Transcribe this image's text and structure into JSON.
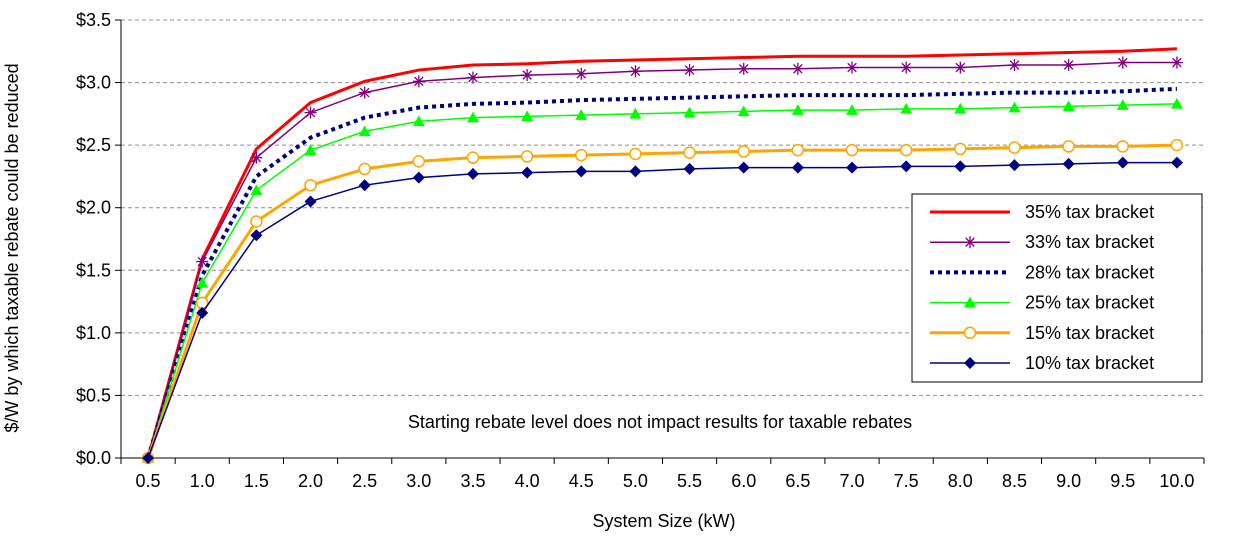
{
  "chart_data": {
    "type": "line",
    "xlabel": "System Size (kW)",
    "ylabel": "$/W by which taxable rebate could be reduced",
    "x": [
      "0.5",
      "1.0",
      "1.5",
      "2.0",
      "2.5",
      "3.0",
      "3.5",
      "4.0",
      "4.5",
      "5.0",
      "5.5",
      "6.0",
      "6.5",
      "7.0",
      "7.5",
      "8.0",
      "8.5",
      "9.0",
      "9.5",
      "10.0"
    ],
    "ylim": [
      0,
      3.5
    ],
    "y_ticks": [
      0,
      0.5,
      1.0,
      1.5,
      2.0,
      2.5,
      3.0,
      3.5
    ],
    "y_tick_labels": [
      "$0.0",
      "$0.5",
      "$1.0",
      "$1.5",
      "$2.0",
      "$2.5",
      "$3.0",
      "$3.5"
    ],
    "grid": "horizontal dashed",
    "legend_position": "right",
    "annotation": "Starting rebate level does not impact results for taxable rebates",
    "series": [
      {
        "name": "35% tax bracket",
        "color": "#ff0000",
        "marker": "none",
        "line": "solid-thick",
        "values": [
          0,
          1.59,
          2.47,
          2.84,
          3.01,
          3.1,
          3.14,
          3.15,
          3.17,
          3.18,
          3.19,
          3.2,
          3.21,
          3.21,
          3.21,
          3.22,
          3.23,
          3.24,
          3.25,
          3.27
        ]
      },
      {
        "name": "33% tax bracket",
        "color": "#800080",
        "marker": "asterisk",
        "line": "solid",
        "values": [
          0,
          1.57,
          2.4,
          2.76,
          2.92,
          3.01,
          3.04,
          3.06,
          3.07,
          3.09,
          3.1,
          3.11,
          3.11,
          3.12,
          3.12,
          3.12,
          3.14,
          3.14,
          3.16,
          3.16
        ]
      },
      {
        "name": "28% tax bracket",
        "color": "#000080",
        "marker": "none",
        "line": "dotted",
        "values": [
          0,
          1.46,
          2.25,
          2.56,
          2.72,
          2.8,
          2.83,
          2.84,
          2.86,
          2.87,
          2.88,
          2.89,
          2.9,
          2.9,
          2.9,
          2.91,
          2.92,
          2.92,
          2.93,
          2.95
        ]
      },
      {
        "name": "25% tax bracket",
        "color": "#00ff00",
        "marker": "triangle",
        "line": "solid",
        "values": [
          0,
          1.4,
          2.14,
          2.46,
          2.61,
          2.69,
          2.72,
          2.73,
          2.74,
          2.75,
          2.76,
          2.77,
          2.78,
          2.78,
          2.79,
          2.79,
          2.8,
          2.81,
          2.82,
          2.83
        ]
      },
      {
        "name": "15% tax bracket",
        "color": "#ffa500",
        "marker": "circle-open",
        "line": "solid-thick",
        "values": [
          0,
          1.24,
          1.89,
          2.18,
          2.31,
          2.37,
          2.4,
          2.41,
          2.42,
          2.43,
          2.44,
          2.45,
          2.46,
          2.46,
          2.46,
          2.47,
          2.48,
          2.49,
          2.49,
          2.5
        ]
      },
      {
        "name": "10% tax bracket",
        "color": "#000080",
        "marker": "diamond",
        "line": "solid",
        "values": [
          0,
          1.16,
          1.78,
          2.05,
          2.18,
          2.24,
          2.27,
          2.28,
          2.29,
          2.29,
          2.31,
          2.32,
          2.32,
          2.32,
          2.33,
          2.33,
          2.34,
          2.35,
          2.36,
          2.36
        ]
      }
    ]
  }
}
